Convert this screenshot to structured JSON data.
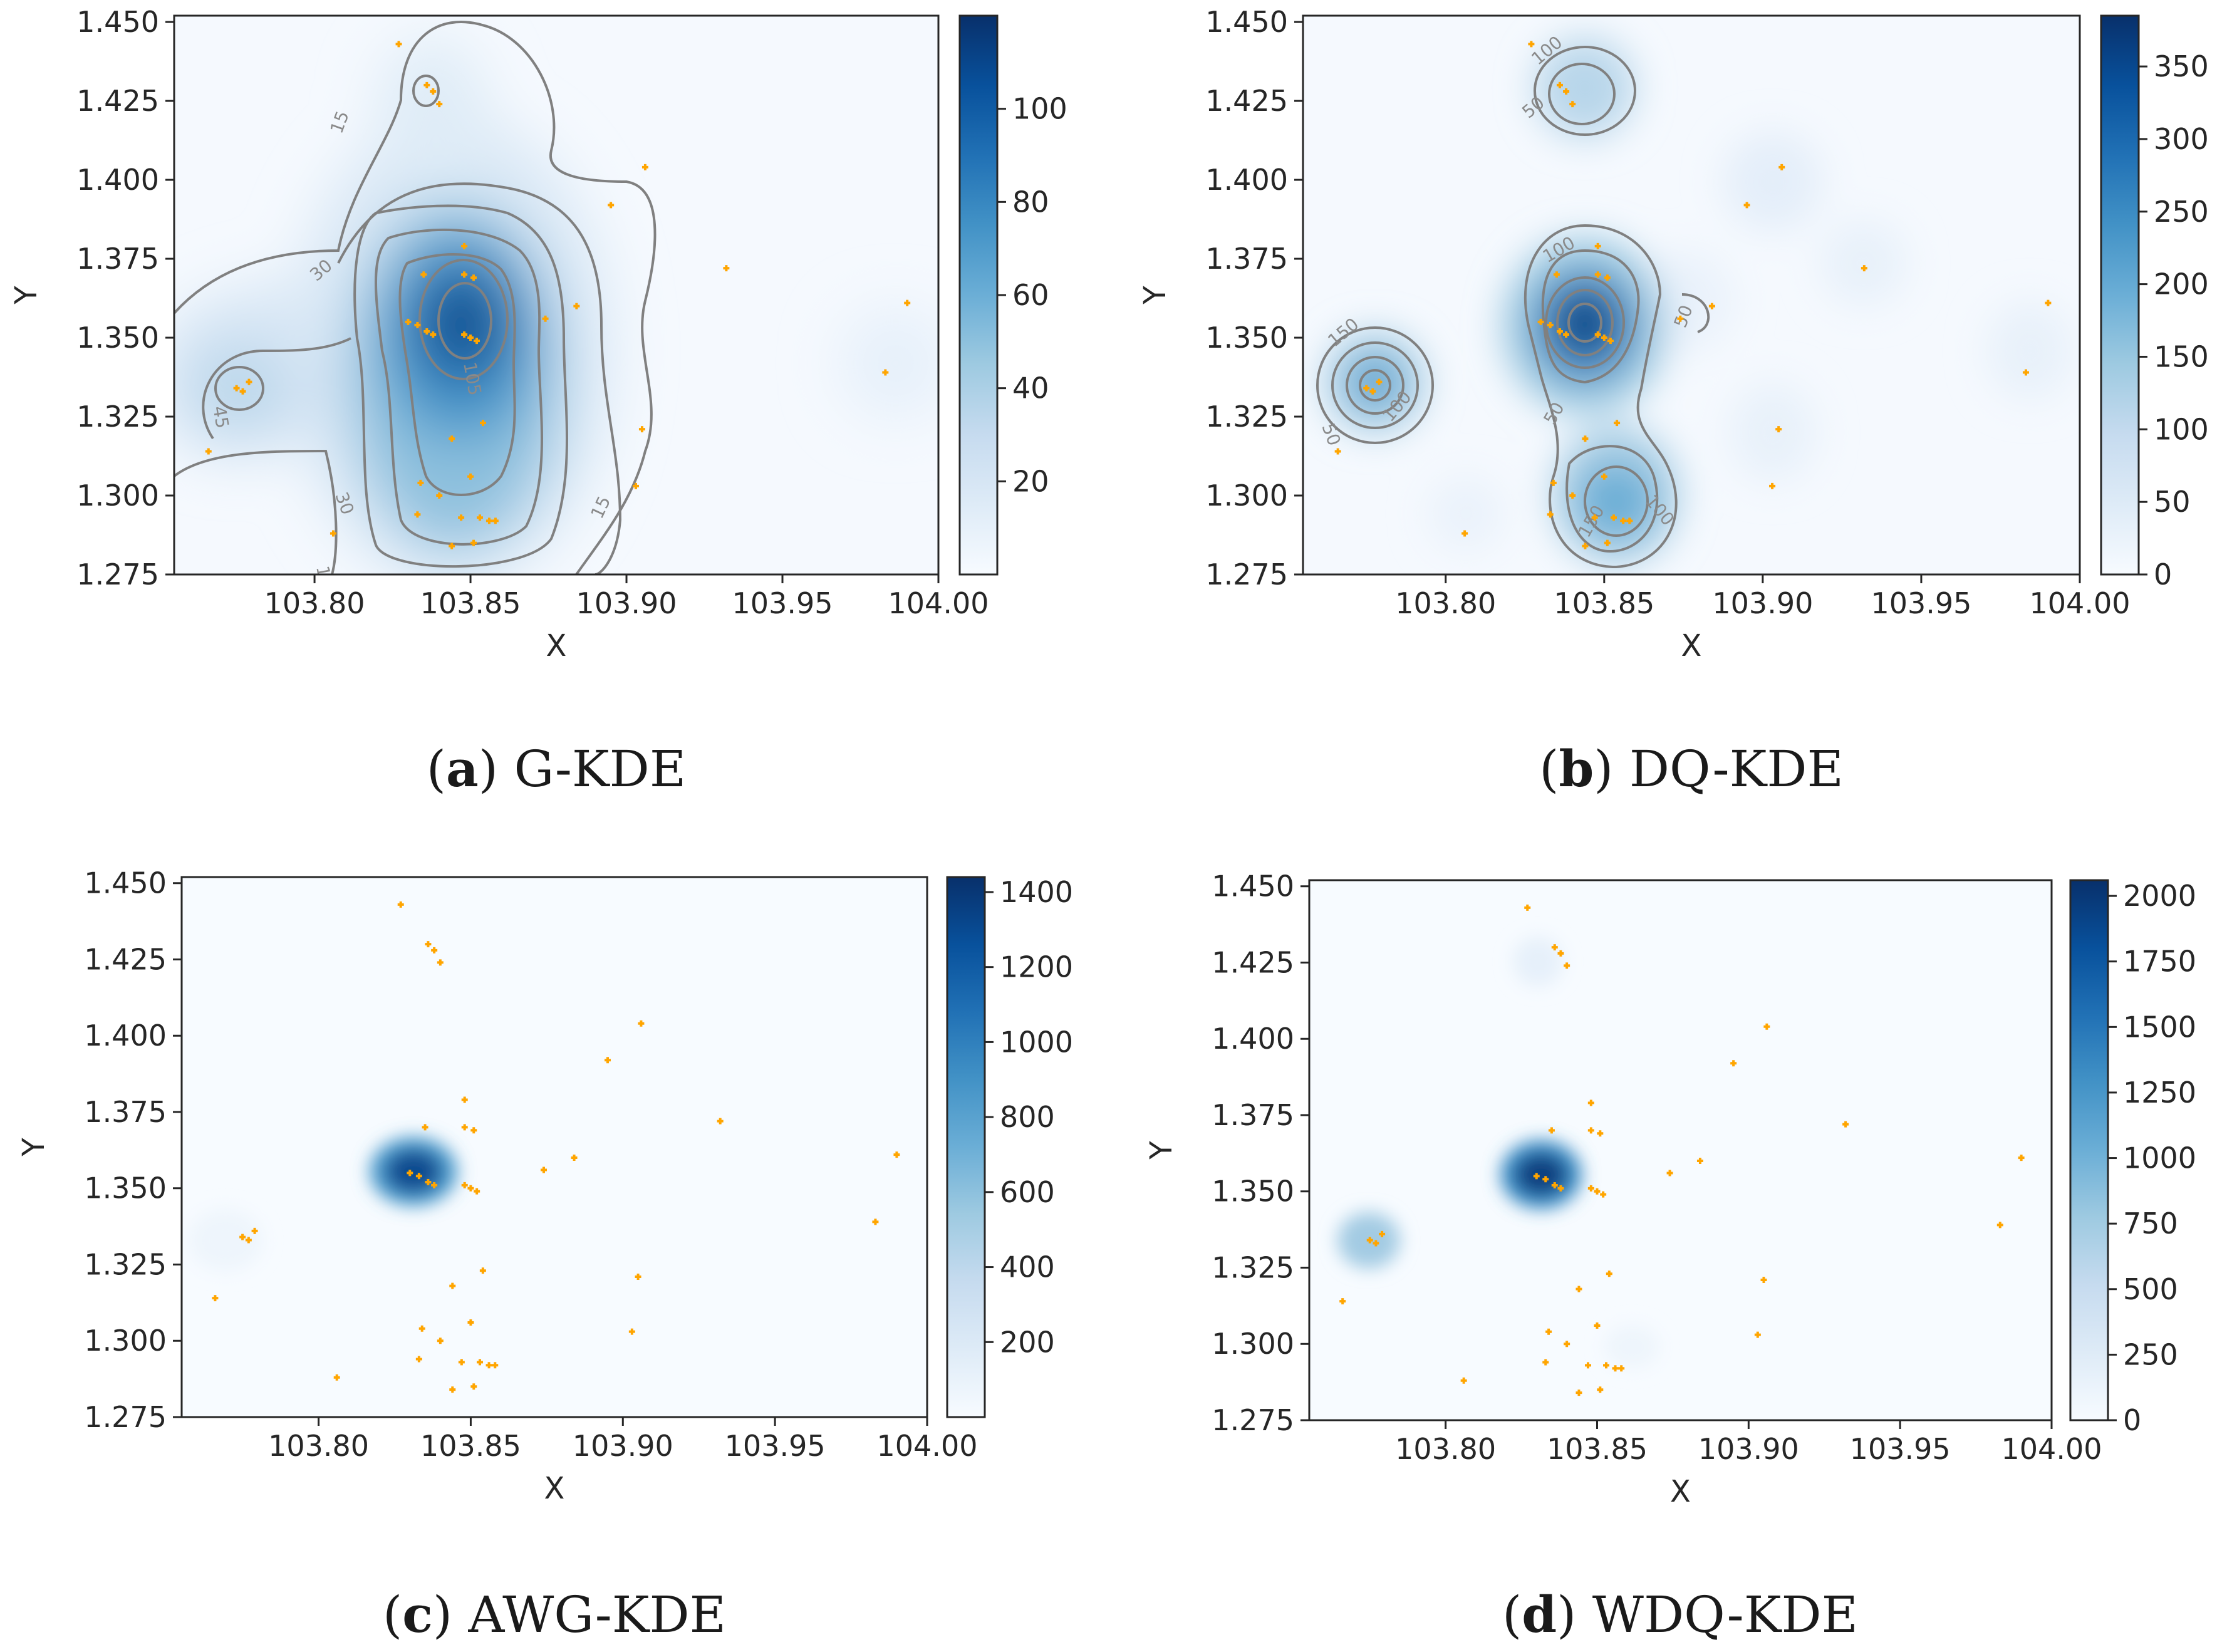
{
  "colors": {
    "low": "#f7fbff",
    "high": "#08306b",
    "point": "#ffa500",
    "contour": "#808080",
    "axis": "#262626"
  },
  "chart_data": [
    {
      "id": "a",
      "type": "heatmap",
      "title": "G-KDE",
      "caption_letter": "(a)",
      "caption_text": "G-KDE",
      "xlabel": "X",
      "ylabel": "Y",
      "xlim": [
        103.755,
        104.0
      ],
      "ylim": [
        1.275,
        1.452
      ],
      "xticks": [
        "103.80",
        "103.85",
        "103.90",
        "103.95",
        "104.00"
      ],
      "yticks": [
        "1.275",
        "1.300",
        "1.325",
        "1.350",
        "1.375",
        "1.400",
        "1.425",
        "1.450"
      ],
      "colorbar": {
        "min": 0,
        "max": 120,
        "ticks": [
          "20",
          "40",
          "60",
          "80",
          "100"
        ]
      },
      "contour_labels": [
        "15",
        "30",
        "45",
        "105"
      ]
    },
    {
      "id": "b",
      "type": "heatmap",
      "title": "DQ-KDE",
      "caption_letter": "(b)",
      "caption_text": "DQ-KDE",
      "xlabel": "X",
      "ylabel": "Y",
      "xlim": [
        103.755,
        104.0
      ],
      "ylim": [
        1.275,
        1.452
      ],
      "xticks": [
        "103.80",
        "103.85",
        "103.90",
        "103.95",
        "104.00"
      ],
      "yticks": [
        "1.275",
        "1.300",
        "1.325",
        "1.350",
        "1.375",
        "1.400",
        "1.425",
        "1.450"
      ],
      "colorbar": {
        "min": 0,
        "max": 385,
        "ticks": [
          "0",
          "50",
          "100",
          "150",
          "200",
          "250",
          "300",
          "350"
        ]
      },
      "contour_labels": [
        "50",
        "100",
        "150"
      ]
    },
    {
      "id": "c",
      "type": "heatmap",
      "title": "AWG-KDE",
      "caption_letter": "(c)",
      "caption_text": "AWG-KDE",
      "xlabel": "X",
      "ylabel": "Y",
      "xlim": [
        103.755,
        104.0
      ],
      "ylim": [
        1.275,
        1.452
      ],
      "xticks": [
        "103.80",
        "103.85",
        "103.90",
        "103.95",
        "104.00"
      ],
      "yticks": [
        "1.275",
        "1.300",
        "1.325",
        "1.350",
        "1.375",
        "1.400",
        "1.425",
        "1.450"
      ],
      "colorbar": {
        "min": 0,
        "max": 1440,
        "ticks": [
          "200",
          "400",
          "600",
          "800",
          "1000",
          "1200",
          "1400"
        ]
      },
      "contour_labels": []
    },
    {
      "id": "d",
      "type": "heatmap",
      "title": "WDQ-KDE",
      "caption_letter": "(d)",
      "caption_text": "WDQ-KDE",
      "xlabel": "X",
      "ylabel": "Y",
      "xlim": [
        103.755,
        104.0
      ],
      "ylim": [
        1.275,
        1.452
      ],
      "xticks": [
        "103.80",
        "103.85",
        "103.90",
        "103.95",
        "104.00"
      ],
      "yticks": [
        "1.275",
        "1.300",
        "1.325",
        "1.350",
        "1.375",
        "1.400",
        "1.425",
        "1.450"
      ],
      "colorbar": {
        "min": 0,
        "max": 2060,
        "ticks": [
          "0",
          "250",
          "500",
          "750",
          "1000",
          "1250",
          "1500",
          "1750",
          "2000"
        ]
      },
      "contour_labels": []
    }
  ],
  "points": [
    [
      103.827,
      1.443
    ],
    [
      103.836,
      1.43
    ],
    [
      103.838,
      1.428
    ],
    [
      103.84,
      1.424
    ],
    [
      103.906,
      1.404
    ],
    [
      103.895,
      1.392
    ],
    [
      103.932,
      1.372
    ],
    [
      103.99,
      1.361
    ],
    [
      103.848,
      1.379
    ],
    [
      103.848,
      1.37
    ],
    [
      103.851,
      1.369
    ],
    [
      103.835,
      1.37
    ],
    [
      103.83,
      1.355
    ],
    [
      103.833,
      1.354
    ],
    [
      103.836,
      1.352
    ],
    [
      103.838,
      1.351
    ],
    [
      103.848,
      1.351
    ],
    [
      103.85,
      1.35
    ],
    [
      103.852,
      1.349
    ],
    [
      103.874,
      1.356
    ],
    [
      103.884,
      1.36
    ],
    [
      103.983,
      1.339
    ],
    [
      103.775,
      1.334
    ],
    [
      103.777,
      1.333
    ],
    [
      103.779,
      1.336
    ],
    [
      103.766,
      1.314
    ],
    [
      103.854,
      1.323
    ],
    [
      103.844,
      1.318
    ],
    [
      103.905,
      1.321
    ],
    [
      103.85,
      1.306
    ],
    [
      103.834,
      1.304
    ],
    [
      103.84,
      1.3
    ],
    [
      103.903,
      1.303
    ],
    [
      103.833,
      1.294
    ],
    [
      103.847,
      1.293
    ],
    [
      103.853,
      1.293
    ],
    [
      103.856,
      1.292
    ],
    [
      103.858,
      1.292
    ],
    [
      103.806,
      1.288
    ],
    [
      103.844,
      1.284
    ],
    [
      103.851,
      1.285
    ]
  ]
}
